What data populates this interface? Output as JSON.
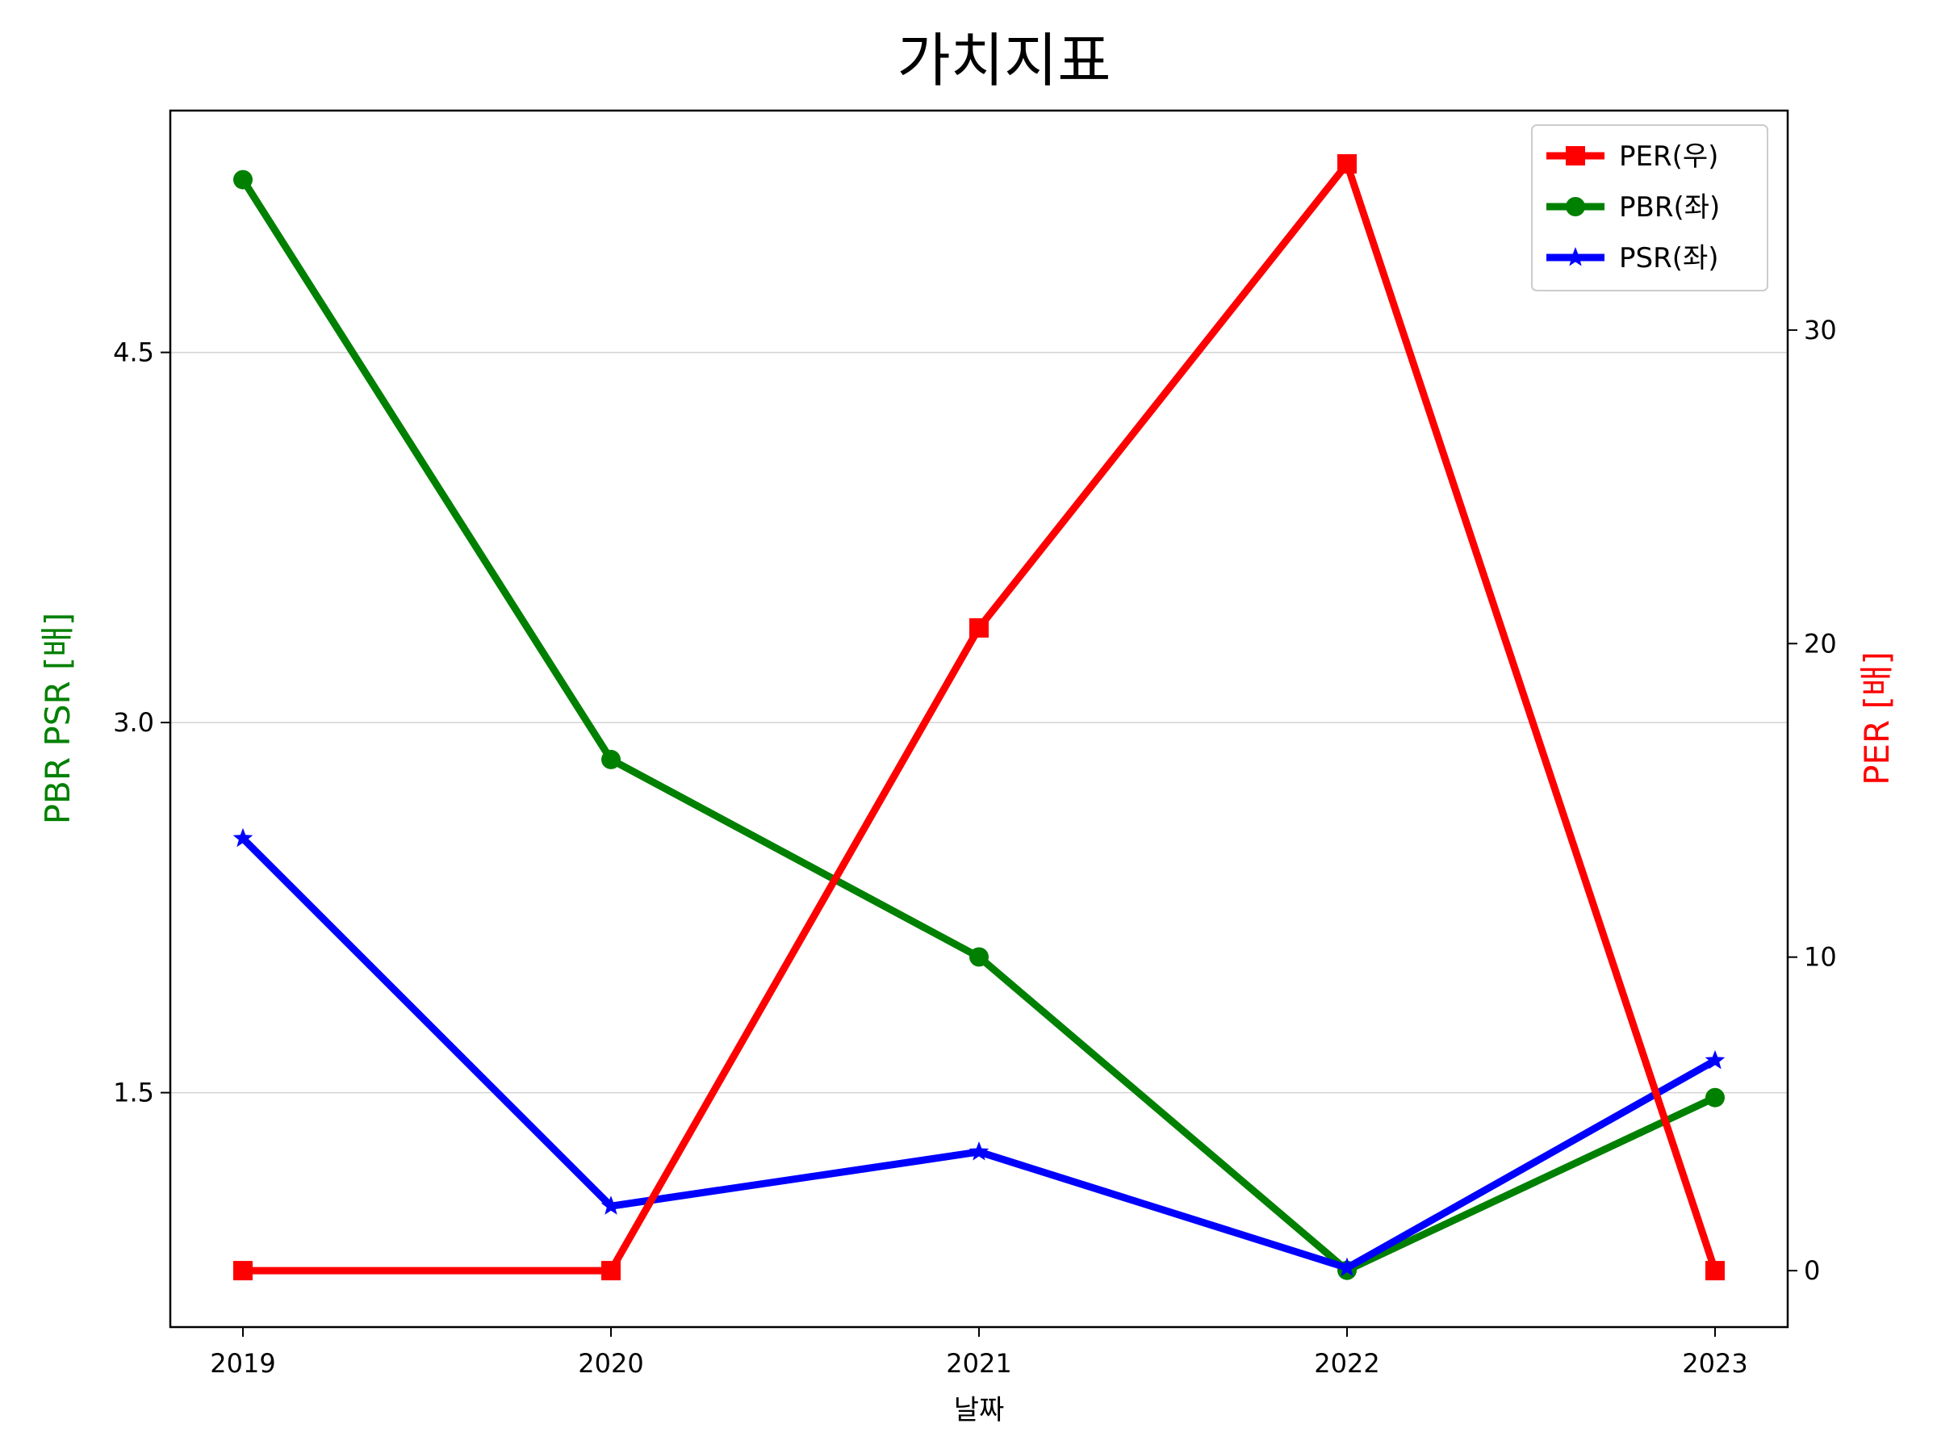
{
  "chart_data": {
    "type": "line",
    "title": "가치지표",
    "xlabel": "날짜",
    "ylabel_left": "PBR PSR [배]",
    "ylabel_right": "PER [배]",
    "categories": [
      "2019",
      "2020",
      "2021",
      "2022",
      "2023"
    ],
    "left_axis": {
      "ticks": [
        "1.5",
        "3.0",
        "4.5"
      ],
      "ylim": [
        0.55,
        5.48
      ],
      "grid": true
    },
    "right_axis": {
      "ticks": [
        "0",
        "10",
        "20",
        "30"
      ],
      "ylim": [
        -1.8,
        37.0
      ]
    },
    "legend": {
      "placement": "top-right"
    },
    "series": [
      {
        "name": "PER(우)",
        "axis": "right",
        "color": "#ff0000",
        "marker": "square",
        "values": [
          0.0,
          0.0,
          20.5,
          35.3,
          0.0
        ]
      },
      {
        "name": "PBR(좌)",
        "axis": "left",
        "color": "#008000",
        "marker": "circle",
        "values": [
          5.2,
          2.85,
          2.05,
          0.78,
          1.48
        ]
      },
      {
        "name": "PSR(좌)",
        "axis": "left",
        "color": "#0000ff",
        "marker": "star",
        "values": [
          2.53,
          1.04,
          1.26,
          0.79,
          1.63
        ]
      }
    ],
    "colors": {
      "left_label": "#008000",
      "right_label": "#ff0000",
      "grid": "#d3d3d3",
      "axis": "#000000"
    }
  }
}
